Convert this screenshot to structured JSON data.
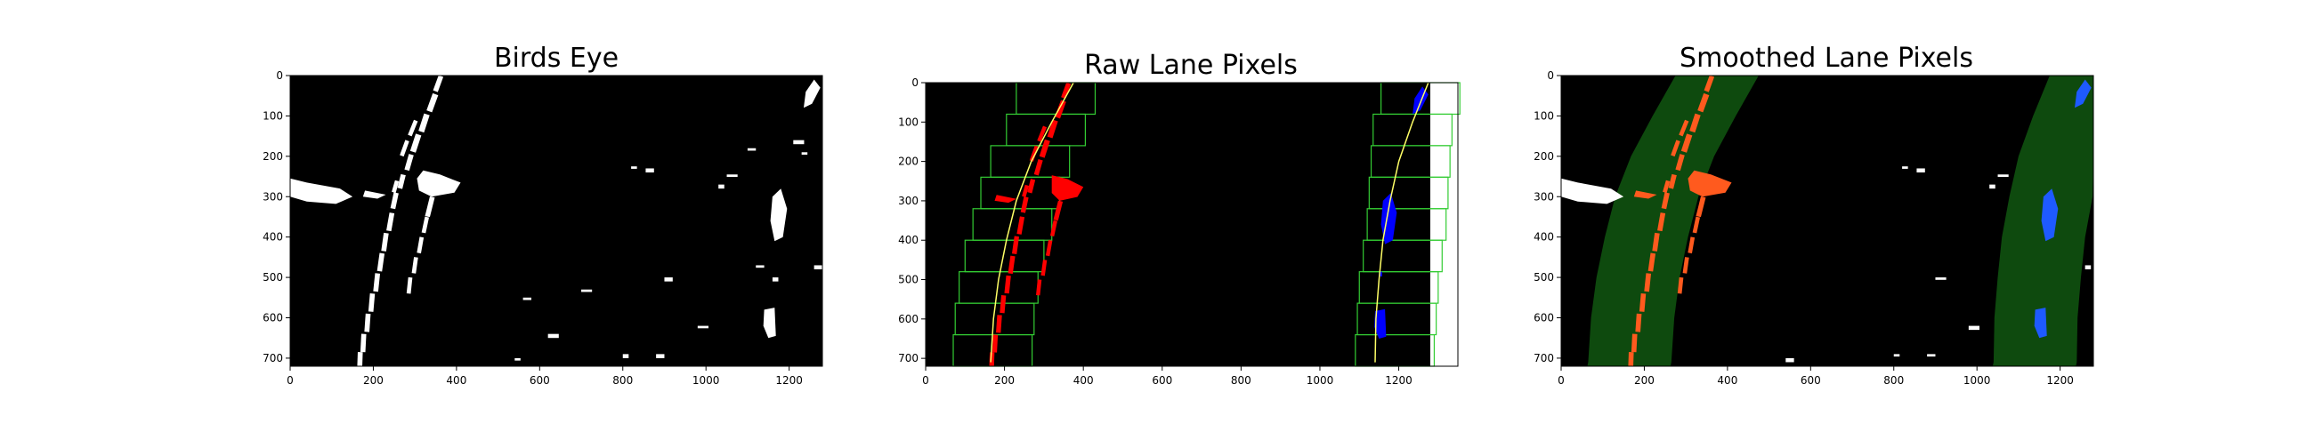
{
  "figure": {
    "panels": [
      {
        "title": "Birds Eye"
      },
      {
        "title": "Raw Lane Pixels"
      },
      {
        "title": "Smoothed Lane Pixels"
      }
    ]
  },
  "chart_data": [
    {
      "type": "image",
      "title": "Birds Eye",
      "xlabel": "",
      "ylabel": "",
      "x_ticks": [
        0,
        200,
        400,
        600,
        800,
        1000,
        1200
      ],
      "y_ticks": [
        0,
        100,
        200,
        300,
        400,
        500,
        600,
        700
      ],
      "xlim": [
        0,
        1280
      ],
      "ylim": [
        720,
        0
      ],
      "colors": {
        "background": "#000000",
        "pixels": "#ffffff"
      }
    },
    {
      "type": "image",
      "title": "Raw Lane Pixels",
      "xlabel": "",
      "ylabel": "",
      "x_ticks": [
        0,
        200,
        400,
        600,
        800,
        1000,
        1200
      ],
      "y_ticks": [
        0,
        100,
        200,
        300,
        400,
        500,
        600,
        700
      ],
      "xlim": [
        0,
        1350
      ],
      "ylim": [
        720,
        0
      ],
      "colors": {
        "background": "#000000",
        "left_lane": "#ff0000",
        "right_lane": "#0000ff",
        "windows": "#33cc33",
        "fit_line": "#ffff66"
      },
      "left_fit_x_at_y": {
        "y": [
          0,
          100,
          200,
          300,
          400,
          500,
          600,
          710
        ],
        "x": [
          375,
          320,
          268,
          230,
          205,
          185,
          172,
          165
        ]
      },
      "right_fit_x_at_y": {
        "y": [
          0,
          100,
          200,
          300,
          400,
          500,
          600,
          710
        ],
        "x": [
          1275,
          1235,
          1200,
          1178,
          1160,
          1150,
          1142,
          1140
        ]
      }
    },
    {
      "type": "image",
      "title": "Smoothed Lane Pixels",
      "xlabel": "",
      "ylabel": "",
      "x_ticks": [
        0,
        200,
        400,
        600,
        800,
        1000,
        1200
      ],
      "y_ticks": [
        0,
        100,
        200,
        300,
        400,
        500,
        600,
        700
      ],
      "xlim": [
        0,
        1280
      ],
      "ylim": [
        720,
        0
      ],
      "colors": {
        "background": "#000000",
        "band": "#0e4a0e",
        "left_lane": "#ff5a1e",
        "right_lane": "#1e5aff"
      }
    }
  ]
}
